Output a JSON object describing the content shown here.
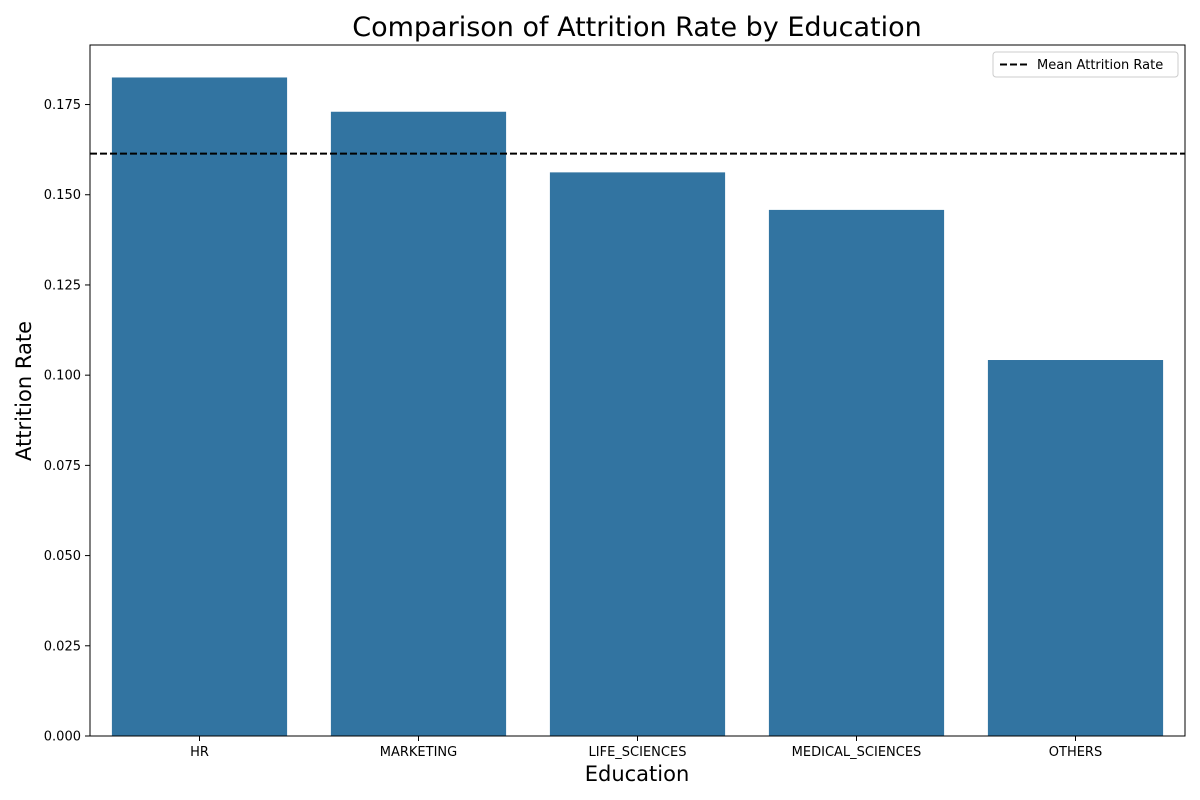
{
  "chart_data": {
    "type": "bar",
    "title": "Comparison of Attrition Rate by Education",
    "xlabel": "Education",
    "ylabel": "Attrition Rate",
    "categories": [
      "HR",
      "MARKETING",
      "LIFE_SCIENCES",
      "MEDICAL_SCIENCES",
      "OTHERS"
    ],
    "values": [
      0.1825,
      0.173,
      0.1562,
      0.1458,
      0.1042
    ],
    "ylim": [
      0,
      0.1915
    ],
    "yticks": [
      0.0,
      0.025,
      0.05,
      0.075,
      0.1,
      0.125,
      0.15,
      0.175
    ],
    "ytick_labels": [
      "0.000",
      "0.025",
      "0.050",
      "0.075",
      "0.100",
      "0.125",
      "0.150",
      "0.175"
    ],
    "bar_color": "#3274a1",
    "grid": false,
    "mean_line": {
      "value": 0.1614,
      "label": "Mean Attrition Rate",
      "color": "#000000",
      "style": "dashed"
    },
    "legend": {
      "placement": "top-right",
      "entries": [
        "Mean Attrition Rate"
      ]
    }
  }
}
